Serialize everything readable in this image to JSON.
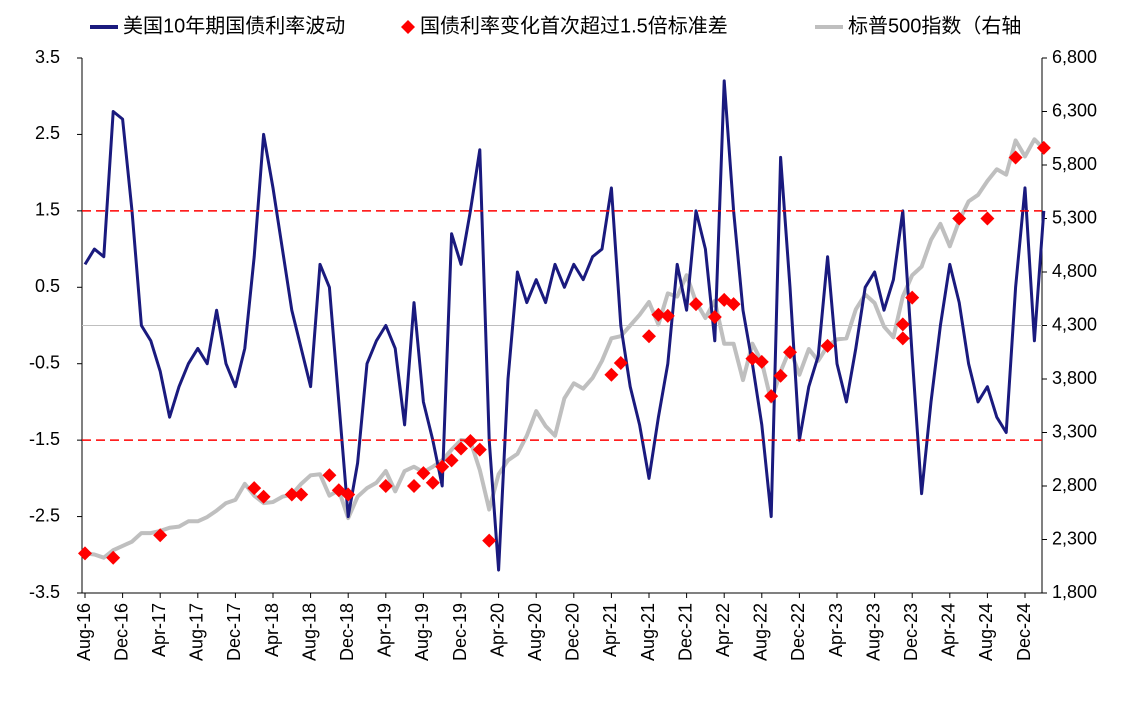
{
  "chart_data": {
    "type": "line",
    "x": [
      "Aug-16",
      "Sep-16",
      "Oct-16",
      "Nov-16",
      "Dec-16",
      "Jan-17",
      "Feb-17",
      "Mar-17",
      "Apr-17",
      "May-17",
      "Jun-17",
      "Jul-17",
      "Aug-17",
      "Sep-17",
      "Oct-17",
      "Nov-17",
      "Dec-17",
      "Jan-18",
      "Feb-18",
      "Mar-18",
      "Apr-18",
      "May-18",
      "Jun-18",
      "Jul-18",
      "Aug-18",
      "Sep-18",
      "Oct-18",
      "Nov-18",
      "Dec-18",
      "Jan-19",
      "Feb-19",
      "Mar-19",
      "Apr-19",
      "May-19",
      "Jun-19",
      "Jul-19",
      "Aug-19",
      "Sep-19",
      "Oct-19",
      "Nov-19",
      "Dec-19",
      "Jan-20",
      "Feb-20",
      "Mar-20",
      "Apr-20",
      "May-20",
      "Jun-20",
      "Jul-20",
      "Aug-20",
      "Sep-20",
      "Oct-20",
      "Nov-20",
      "Dec-20",
      "Jan-21",
      "Feb-21",
      "Mar-21",
      "Apr-21",
      "May-21",
      "Jun-21",
      "Jul-21",
      "Aug-21",
      "Sep-21",
      "Oct-21",
      "Nov-21",
      "Dec-21",
      "Jan-22",
      "Feb-22",
      "Mar-22",
      "Apr-22",
      "May-22",
      "Jun-22",
      "Jul-22",
      "Aug-22",
      "Sep-22",
      "Oct-22",
      "Nov-22",
      "Dec-22",
      "Jan-23",
      "Feb-23",
      "Mar-23",
      "Apr-23",
      "May-23",
      "Jun-23",
      "Jul-23",
      "Aug-23",
      "Sep-23",
      "Oct-23",
      "Nov-23",
      "Dec-23",
      "Jan-24",
      "Feb-24",
      "Mar-24",
      "Apr-24",
      "May-24",
      "Jun-24",
      "Jul-24",
      "Aug-24",
      "Sep-24",
      "Oct-24",
      "Nov-24",
      "Dec-24",
      "Jan-25",
      "Feb-25"
    ],
    "xticks": [
      "Aug-16",
      "Dec-16",
      "Apr-17",
      "Aug-17",
      "Dec-17",
      "Apr-18",
      "Aug-18",
      "Dec-18",
      "Apr-19",
      "Aug-19",
      "Dec-19",
      "Apr-20",
      "Aug-20",
      "Dec-20",
      "Apr-21",
      "Aug-21",
      "Dec-21",
      "Apr-22",
      "Aug-22",
      "Dec-22",
      "Apr-23",
      "Aug-23",
      "Dec-23",
      "Apr-24",
      "Aug-24",
      "Dec-24"
    ],
    "series": [
      {
        "name": "美国10年期国债利率波动",
        "color": "#1a1a7e",
        "axis": "y",
        "values": [
          0.8,
          1.0,
          0.9,
          2.8,
          2.7,
          1.5,
          0.0,
          -0.2,
          -0.6,
          -1.2,
          -0.8,
          -0.5,
          -0.3,
          -0.5,
          0.2,
          -0.5,
          -0.8,
          -0.3,
          0.9,
          2.5,
          1.8,
          1.0,
          0.2,
          -0.3,
          -0.8,
          0.8,
          0.5,
          -1.0,
          -2.5,
          -1.8,
          -0.5,
          -0.2,
          0.0,
          -0.3,
          -1.3,
          0.3,
          -1.0,
          -1.5,
          -2.1,
          1.2,
          0.8,
          1.5,
          2.3,
          -1.5,
          -3.2,
          -0.7,
          0.7,
          0.3,
          0.6,
          0.3,
          0.8,
          0.5,
          0.8,
          0.6,
          0.9,
          1.0,
          1.8,
          0.0,
          -0.8,
          -1.3,
          -2.0,
          -1.2,
          -0.5,
          0.8,
          0.2,
          1.5,
          1.0,
          -0.2,
          3.2,
          1.5,
          0.2,
          -0.5,
          -1.3,
          -2.5,
          2.2,
          0.5,
          -1.5,
          -0.8,
          -0.4,
          0.9,
          -0.5,
          -1.0,
          -0.3,
          0.5,
          0.7,
          0.2,
          0.6,
          1.5,
          -0.4,
          -2.2,
          -1.0,
          0.0,
          0.8,
          0.3,
          -0.5,
          -1.0,
          -0.8,
          -1.2,
          -1.4,
          0.5,
          1.8,
          -0.2,
          1.5
        ]
      },
      {
        "name": "国债利率变化首次超过1.5倍标准差",
        "color": "#ff0000",
        "axis": "y2",
        "marker": "diamond",
        "x": [
          "Aug-16",
          "Nov-16",
          "Apr-17",
          "Feb-18",
          "Mar-18",
          "Jun-18",
          "Jul-18",
          "Oct-18",
          "Nov-18",
          "Dec-18",
          "Apr-19",
          "Jul-19",
          "Aug-19",
          "Sep-19",
          "Oct-19",
          "Nov-19",
          "Dec-19",
          "Jan-20",
          "Feb-20",
          "Mar-20",
          "Apr-21",
          "May-21",
          "Aug-21",
          "Sep-21",
          "Oct-21",
          "Jan-22",
          "Mar-22",
          "Apr-22",
          "May-22",
          "Jul-22",
          "Aug-22",
          "Sep-22",
          "Oct-22",
          "Nov-22",
          "Mar-23",
          "Nov-23",
          "Nov-23",
          "Dec-23",
          "May-24",
          "Aug-24",
          "Nov-24",
          "Feb-25"
        ],
        "values": [
          2170,
          2130,
          2340,
          2780,
          2700,
          2720,
          2720,
          2900,
          2760,
          2720,
          2800,
          2800,
          2920,
          2830,
          2980,
          3040,
          3150,
          3220,
          3140,
          2290,
          3840,
          3950,
          4200,
          4400,
          4390,
          4500,
          4380,
          4540,
          4500,
          3990,
          3960,
          3640,
          3830,
          4050,
          4110,
          4310,
          4180,
          4560,
          5300,
          5300,
          5870,
          5960
        ]
      },
      {
        "name": "标普500指数（右轴",
        "color": "#bfbfbf",
        "axis": "y2",
        "values": [
          2170,
          2160,
          2130,
          2200,
          2240,
          2280,
          2360,
          2360,
          2380,
          2410,
          2420,
          2470,
          2470,
          2510,
          2570,
          2640,
          2670,
          2820,
          2710,
          2640,
          2650,
          2700,
          2720,
          2820,
          2900,
          2910,
          2710,
          2760,
          2500,
          2700,
          2780,
          2830,
          2940,
          2750,
          2940,
          2980,
          2930,
          2980,
          3040,
          3140,
          3230,
          3220,
          2950,
          2580,
          2910,
          3040,
          3100,
          3270,
          3500,
          3360,
          3270,
          3620,
          3760,
          3710,
          3810,
          3970,
          4180,
          4200,
          4300,
          4400,
          4520,
          4310,
          4600,
          4570,
          4770,
          4520,
          4370,
          4530,
          4130,
          4130,
          3790,
          4130,
          3960,
          3590,
          3870,
          4080,
          3840,
          4080,
          3970,
          4110,
          4170,
          4180,
          4450,
          4590,
          4510,
          4290,
          4190,
          4570,
          4770,
          4850,
          5100,
          5250,
          5040,
          5280,
          5460,
          5520,
          5650,
          5760,
          5710,
          6030,
          5880,
          6040,
          5950
        ]
      }
    ],
    "ylim": [
      -3.5,
      3.5
    ],
    "yticks": [
      3.5,
      2.5,
      1.5,
      0.5,
      -0.5,
      -1.5,
      -2.5,
      -3.5
    ],
    "y2lim": [
      1800,
      6800
    ],
    "y2ticks": [
      {
        "value": 6800,
        "label": "6,800"
      },
      {
        "value": 6300,
        "label": "6,300"
      },
      {
        "value": 5800,
        "label": "5,800"
      },
      {
        "value": 5300,
        "label": "5,300"
      },
      {
        "value": 4800,
        "label": "4,800"
      },
      {
        "value": 4300,
        "label": "4,300"
      },
      {
        "value": 3800,
        "label": "3,800"
      },
      {
        "value": 3300,
        "label": "3,300"
      },
      {
        "value": 2800,
        "label": "2,800"
      },
      {
        "value": 2300,
        "label": "2,300"
      },
      {
        "value": 1800,
        "label": "1,800"
      }
    ],
    "reference_lines": [
      1.5,
      -1.5
    ],
    "reference_color": "#ff0000",
    "grid": false,
    "legend": "top"
  }
}
